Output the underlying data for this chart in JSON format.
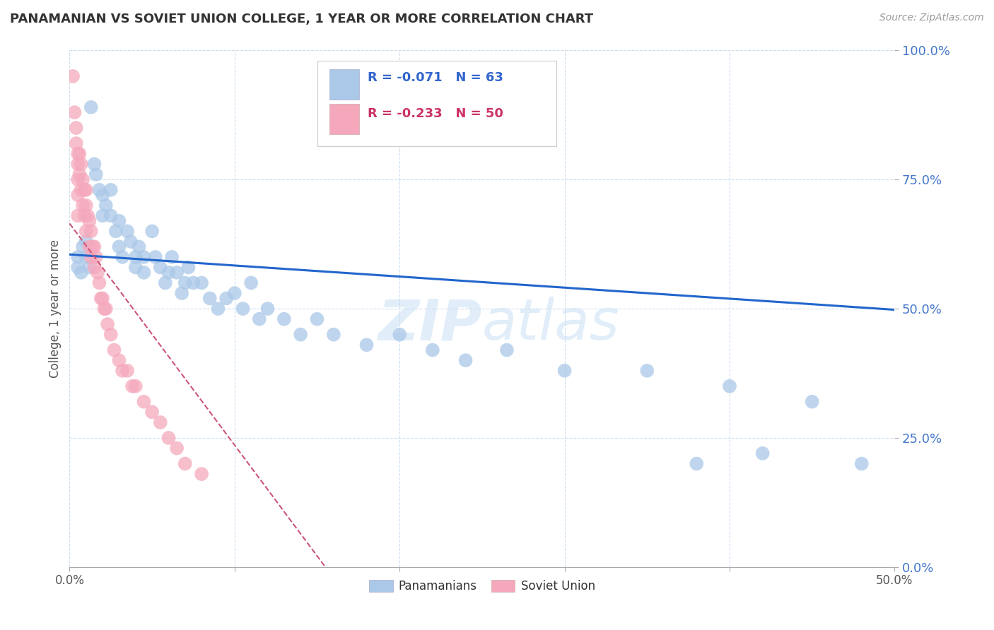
{
  "title": "PANAMANIAN VS SOVIET UNION COLLEGE, 1 YEAR OR MORE CORRELATION CHART",
  "source_text": "Source: ZipAtlas.com",
  "ylabel": "College, 1 year or more",
  "xlim": [
    0.0,
    0.5
  ],
  "ylim": [
    0.0,
    1.0
  ],
  "xticks": [
    0.0,
    0.1,
    0.2,
    0.3,
    0.4,
    0.5
  ],
  "yticks": [
    0.0,
    0.25,
    0.5,
    0.75,
    1.0
  ],
  "xticklabels": [
    "0.0%",
    "",
    "",
    "",
    "",
    "50.0%"
  ],
  "yticklabels": [
    "0.0%",
    "25.0%",
    "50.0%",
    "75.0%",
    "100.0%"
  ],
  "blue_R": -0.071,
  "blue_N": 63,
  "pink_R": -0.233,
  "pink_N": 50,
  "blue_color": "#aac8e8",
  "pink_color": "#f5a8bc",
  "blue_line_color": "#2266cc",
  "pink_line_color": "#cc5577",
  "legend_blue_label": "Panamanians",
  "legend_pink_label": "Soviet Union",
  "watermark_zip": "ZIP",
  "watermark_atlas": "atlas",
  "blue_line_x0": 0.0,
  "blue_line_x1": 0.5,
  "blue_line_y0": 0.605,
  "blue_line_y1": 0.498,
  "pink_line_x0": 0.0,
  "pink_line_x1": 0.155,
  "pink_line_y0": 0.665,
  "pink_line_y1": 0.0,
  "blue_scatter_x": [
    0.005,
    0.005,
    0.007,
    0.008,
    0.01,
    0.01,
    0.012,
    0.013,
    0.015,
    0.016,
    0.018,
    0.02,
    0.02,
    0.022,
    0.025,
    0.025,
    0.028,
    0.03,
    0.03,
    0.032,
    0.035,
    0.037,
    0.04,
    0.04,
    0.042,
    0.045,
    0.045,
    0.05,
    0.052,
    0.055,
    0.058,
    0.06,
    0.062,
    0.065,
    0.068,
    0.07,
    0.072,
    0.075,
    0.08,
    0.085,
    0.09,
    0.095,
    0.1,
    0.105,
    0.11,
    0.115,
    0.12,
    0.13,
    0.14,
    0.15,
    0.16,
    0.18,
    0.2,
    0.22,
    0.24,
    0.265,
    0.3,
    0.35,
    0.4,
    0.45,
    0.48,
    0.42,
    0.38
  ],
  "blue_scatter_y": [
    0.6,
    0.58,
    0.57,
    0.62,
    0.63,
    0.6,
    0.58,
    0.89,
    0.78,
    0.76,
    0.73,
    0.72,
    0.68,
    0.7,
    0.73,
    0.68,
    0.65,
    0.67,
    0.62,
    0.6,
    0.65,
    0.63,
    0.6,
    0.58,
    0.62,
    0.6,
    0.57,
    0.65,
    0.6,
    0.58,
    0.55,
    0.57,
    0.6,
    0.57,
    0.53,
    0.55,
    0.58,
    0.55,
    0.55,
    0.52,
    0.5,
    0.52,
    0.53,
    0.5,
    0.55,
    0.48,
    0.5,
    0.48,
    0.45,
    0.48,
    0.45,
    0.43,
    0.45,
    0.42,
    0.4,
    0.42,
    0.38,
    0.38,
    0.35,
    0.32,
    0.2,
    0.22,
    0.2
  ],
  "pink_scatter_x": [
    0.002,
    0.003,
    0.004,
    0.004,
    0.005,
    0.005,
    0.005,
    0.005,
    0.005,
    0.006,
    0.006,
    0.007,
    0.007,
    0.008,
    0.008,
    0.009,
    0.009,
    0.01,
    0.01,
    0.01,
    0.011,
    0.012,
    0.012,
    0.013,
    0.013,
    0.014,
    0.015,
    0.015,
    0.016,
    0.017,
    0.018,
    0.019,
    0.02,
    0.021,
    0.022,
    0.023,
    0.025,
    0.027,
    0.03,
    0.032,
    0.035,
    0.038,
    0.04,
    0.045,
    0.05,
    0.055,
    0.06,
    0.065,
    0.07,
    0.08
  ],
  "pink_scatter_y": [
    0.95,
    0.88,
    0.85,
    0.82,
    0.8,
    0.78,
    0.75,
    0.72,
    0.68,
    0.8,
    0.76,
    0.78,
    0.73,
    0.75,
    0.7,
    0.73,
    0.68,
    0.73,
    0.7,
    0.65,
    0.68,
    0.67,
    0.62,
    0.65,
    0.6,
    0.62,
    0.62,
    0.58,
    0.6,
    0.57,
    0.55,
    0.52,
    0.52,
    0.5,
    0.5,
    0.47,
    0.45,
    0.42,
    0.4,
    0.38,
    0.38,
    0.35,
    0.35,
    0.32,
    0.3,
    0.28,
    0.25,
    0.23,
    0.2,
    0.18
  ]
}
